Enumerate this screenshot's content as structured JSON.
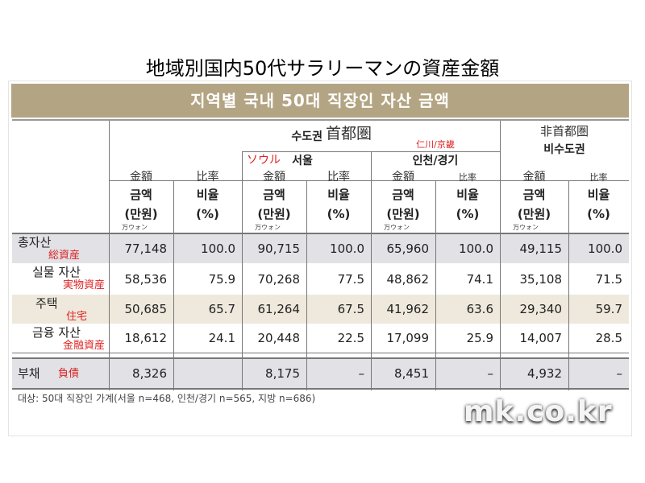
{
  "title": "地域別国内50代サラリーマンの資産金額",
  "banner": "지역별 국내 50대 직장인 자산 금액",
  "groups": {
    "capital_ko": "수도권",
    "capital_jp": "首都圏",
    "noncap_jp": "非首都圏",
    "noncap_ko": "비수도권",
    "seoul_ko": "서울",
    "seoul_jp": "ソウル",
    "incheon_ko": "인천/경기",
    "incheon_jp": "仁川/京畿"
  },
  "col": {
    "amount_jp": "金額",
    "amount_ko": "금액",
    "unit_ko": "(만원)",
    "unit_jp": "万ウォン",
    "ratio_jp": "比率",
    "ratio_ko": "비율",
    "pct": "(%)"
  },
  "rows": [
    {
      "ko": "총자산",
      "jp": "総資産",
      "v": [
        "77,148",
        "100.0",
        "90,715",
        "100.0",
        "65,960",
        "100.0",
        "49,115",
        "100.0"
      ]
    },
    {
      "ko": "실물 자산",
      "jp": "実物資産",
      "v": [
        "58,536",
        "75.9",
        "70,268",
        "77.5",
        "48,862",
        "74.1",
        "35,108",
        "71.5"
      ]
    },
    {
      "ko": "주택",
      "jp": "住宅",
      "v": [
        "50,685",
        "65.7",
        "61,264",
        "67.5",
        "41,962",
        "63.6",
        "29,340",
        "59.7"
      ]
    },
    {
      "ko": "금융 자산",
      "jp": "金融資産",
      "v": [
        "18,612",
        "24.1",
        "20,448",
        "22.5",
        "17,099",
        "25.9",
        "14,007",
        "28.5"
      ]
    },
    {
      "ko": "부채",
      "jp": "負債",
      "v": [
        "8,326",
        "",
        "8,175",
        "–",
        "8,451",
        "–",
        "4,932",
        "–"
      ]
    }
  ],
  "footnote": "대상: 50대 직장인 가계(서울 n=468, 인천/경기 n=565, 지방 n=686)",
  "watermark": "mk.co.kr"
}
